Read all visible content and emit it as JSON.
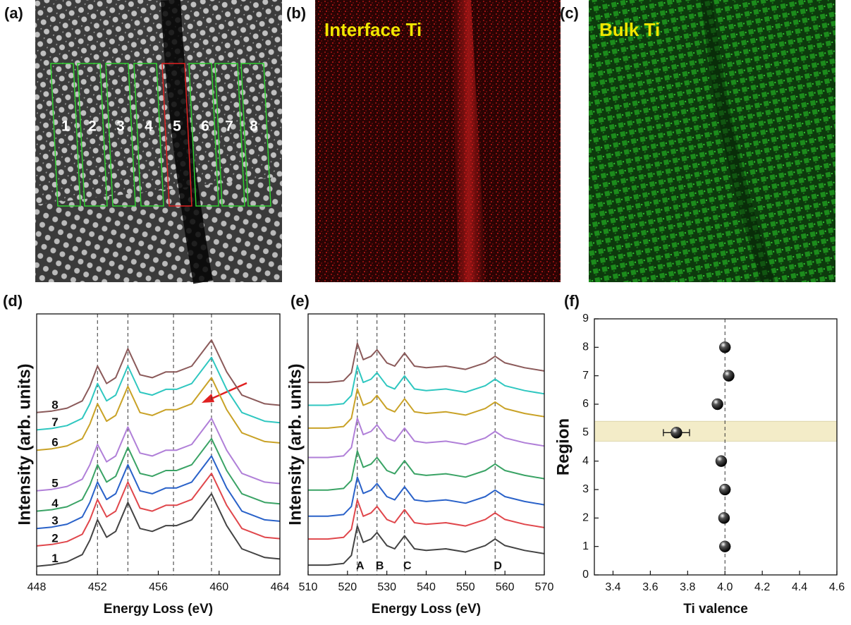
{
  "images": [
    {
      "label": "(a)",
      "regions": [
        "1",
        "2",
        "3",
        "4",
        "5",
        "6",
        "7",
        "8"
      ]
    },
    {
      "label": "(b)",
      "title": "Interface Ti"
    },
    {
      "label": "(c)",
      "title": "Bulk Ti"
    }
  ],
  "chart_data": [
    {
      "type": "line",
      "label": "(d)",
      "xlabel": "Energy Loss (eV)",
      "ylabel": "Intensity (arb. units)",
      "xlim": [
        448,
        464
      ],
      "xticks": [
        448,
        452,
        456,
        460,
        464
      ],
      "ylim": [
        0,
        9
      ],
      "vlines": [
        452,
        454,
        457,
        459.5
      ],
      "x": [
        448,
        449,
        450,
        451,
        451.5,
        452,
        452.6,
        453.2,
        454,
        454.8,
        455.6,
        456.5,
        457.2,
        458.2,
        459.5,
        460.5,
        461.5,
        463,
        464
      ],
      "series": [
        {
          "name": "1",
          "color": "#444444",
          "values": [
            0.3,
            0.35,
            0.45,
            0.7,
            1.2,
            1.9,
            1.3,
            1.5,
            2.5,
            1.6,
            1.5,
            1.7,
            1.7,
            1.9,
            2.8,
            1.7,
            0.9,
            0.6,
            0.55
          ]
        },
        {
          "name": "2",
          "color": "#e0474c",
          "values": [
            1.0,
            1.05,
            1.15,
            1.4,
            1.9,
            2.6,
            2.0,
            2.2,
            3.2,
            2.3,
            2.2,
            2.4,
            2.4,
            2.6,
            3.5,
            2.4,
            1.6,
            1.3,
            1.25
          ]
        },
        {
          "name": "3",
          "color": "#2a62c9",
          "values": [
            1.6,
            1.65,
            1.75,
            2.0,
            2.5,
            3.2,
            2.6,
            2.8,
            3.8,
            2.9,
            2.8,
            3.0,
            3.0,
            3.2,
            4.1,
            3.0,
            2.2,
            1.9,
            1.85
          ]
        },
        {
          "name": "4",
          "color": "#3aa365",
          "values": [
            2.2,
            2.25,
            2.35,
            2.6,
            3.1,
            3.8,
            3.2,
            3.4,
            4.4,
            3.5,
            3.4,
            3.6,
            3.6,
            3.8,
            4.7,
            3.6,
            2.8,
            2.5,
            2.45
          ]
        },
        {
          "name": "5",
          "color": "#b07fd8",
          "values": [
            2.9,
            2.95,
            3.05,
            3.3,
            3.8,
            4.5,
            3.9,
            4.1,
            5.1,
            4.2,
            4.1,
            4.3,
            4.3,
            4.5,
            5.4,
            4.3,
            3.5,
            3.2,
            3.15
          ]
        },
        {
          "name": "6",
          "color": "#c9a227",
          "values": [
            4.3,
            4.35,
            4.45,
            4.7,
            5.2,
            5.9,
            5.3,
            5.5,
            6.5,
            5.6,
            5.5,
            5.7,
            5.7,
            5.9,
            6.8,
            5.7,
            4.9,
            4.6,
            4.55
          ]
        },
        {
          "name": "7",
          "color": "#2fc7c0",
          "values": [
            5.0,
            5.05,
            5.15,
            5.4,
            5.9,
            6.6,
            6.0,
            6.2,
            7.2,
            6.3,
            6.2,
            6.4,
            6.4,
            6.6,
            7.5,
            6.4,
            5.6,
            5.3,
            5.25
          ]
        },
        {
          "name": "8",
          "color": "#8b5a5a",
          "values": [
            5.6,
            5.65,
            5.75,
            6.0,
            6.5,
            7.2,
            6.6,
            6.8,
            7.8,
            6.9,
            6.8,
            7.0,
            7.0,
            7.2,
            8.1,
            7.0,
            6.2,
            5.9,
            5.85
          ]
        }
      ]
    },
    {
      "type": "line",
      "label": "(e)",
      "xlabel": "Energy Loss (eV)",
      "ylabel": "Intensity (arb. units)",
      "xlim": [
        510,
        570
      ],
      "xticks": [
        510,
        520,
        530,
        540,
        550,
        560,
        570
      ],
      "ylim": [
        0,
        8
      ],
      "vlines": [
        {
          "value": 522.5,
          "label": "A"
        },
        {
          "value": 527.5,
          "label": "B"
        },
        {
          "value": 534.5,
          "label": "C"
        },
        {
          "value": 557.5,
          "label": "D"
        }
      ],
      "x": [
        510,
        515,
        519,
        521,
        522.5,
        524,
        526,
        527.5,
        530,
        532,
        534.5,
        537,
        540,
        545,
        550,
        555,
        557.5,
        560,
        565,
        570
      ],
      "series": [
        {
          "color": "#444444",
          "values": [
            0.3,
            0.3,
            0.35,
            0.6,
            1.5,
            1.0,
            1.1,
            1.3,
            0.9,
            0.8,
            1.2,
            0.8,
            0.75,
            0.8,
            0.7,
            0.9,
            1.1,
            0.9,
            0.75,
            0.65
          ]
        },
        {
          "color": "#e0474c",
          "values": [
            1.1,
            1.1,
            1.15,
            1.4,
            2.3,
            1.8,
            1.9,
            2.1,
            1.7,
            1.6,
            2.0,
            1.6,
            1.55,
            1.6,
            1.5,
            1.7,
            1.9,
            1.7,
            1.55,
            1.45
          ]
        },
        {
          "color": "#2a62c9",
          "values": [
            1.8,
            1.8,
            1.85,
            2.1,
            3.0,
            2.5,
            2.6,
            2.8,
            2.4,
            2.3,
            2.7,
            2.3,
            2.25,
            2.3,
            2.2,
            2.4,
            2.6,
            2.4,
            2.25,
            2.15
          ]
        },
        {
          "color": "#3aa365",
          "values": [
            2.6,
            2.6,
            2.65,
            2.9,
            3.8,
            3.3,
            3.4,
            3.6,
            3.2,
            3.1,
            3.5,
            3.1,
            3.05,
            3.1,
            3.0,
            3.2,
            3.4,
            3.2,
            3.05,
            2.95
          ]
        },
        {
          "color": "#b07fd8",
          "values": [
            3.6,
            3.6,
            3.65,
            3.9,
            4.8,
            4.3,
            4.4,
            4.6,
            4.2,
            4.1,
            4.5,
            4.1,
            4.05,
            4.1,
            4.0,
            4.2,
            4.4,
            4.2,
            4.05,
            3.95
          ]
        },
        {
          "color": "#c9a227",
          "values": [
            4.5,
            4.5,
            4.55,
            4.8,
            5.7,
            5.2,
            5.3,
            5.5,
            5.1,
            5.0,
            5.4,
            5.0,
            4.95,
            5.0,
            4.9,
            5.1,
            5.3,
            5.1,
            4.95,
            4.85
          ]
        },
        {
          "color": "#2fc7c0",
          "values": [
            5.2,
            5.2,
            5.25,
            5.5,
            6.4,
            5.9,
            6.0,
            6.2,
            5.8,
            5.7,
            6.1,
            5.7,
            5.65,
            5.7,
            5.6,
            5.8,
            6.0,
            5.8,
            5.65,
            5.55
          ]
        },
        {
          "color": "#8b5a5a",
          "values": [
            5.9,
            5.9,
            5.95,
            6.2,
            7.1,
            6.6,
            6.7,
            6.9,
            6.5,
            6.4,
            6.8,
            6.4,
            6.35,
            6.4,
            6.3,
            6.5,
            6.7,
            6.5,
            6.35,
            6.25
          ]
        }
      ]
    },
    {
      "type": "scatter",
      "label": "(f)",
      "xlabel": "Ti valence",
      "ylabel": "Region",
      "xlim": [
        3.3,
        4.6
      ],
      "xticks": [
        3.4,
        3.6,
        3.8,
        {
          "value": 4,
          "label": "4.0"
        },
        4.2,
        4.4,
        4.6
      ],
      "ylim": [
        0,
        9
      ],
      "yticks": [
        0,
        1,
        2,
        3,
        4,
        5,
        6,
        7,
        8,
        9
      ],
      "vline": 4,
      "band": [
        4.7,
        5.4
      ],
      "color": "#111111",
      "x": [
        4.0,
        3.995,
        4.0,
        3.98,
        3.74,
        3.96,
        4.02,
        4.0
      ],
      "values": [
        1,
        2,
        3,
        4,
        5,
        6,
        7,
        8
      ],
      "xerr": [
        null,
        null,
        null,
        null,
        0.07,
        null,
        null,
        null
      ]
    }
  ]
}
